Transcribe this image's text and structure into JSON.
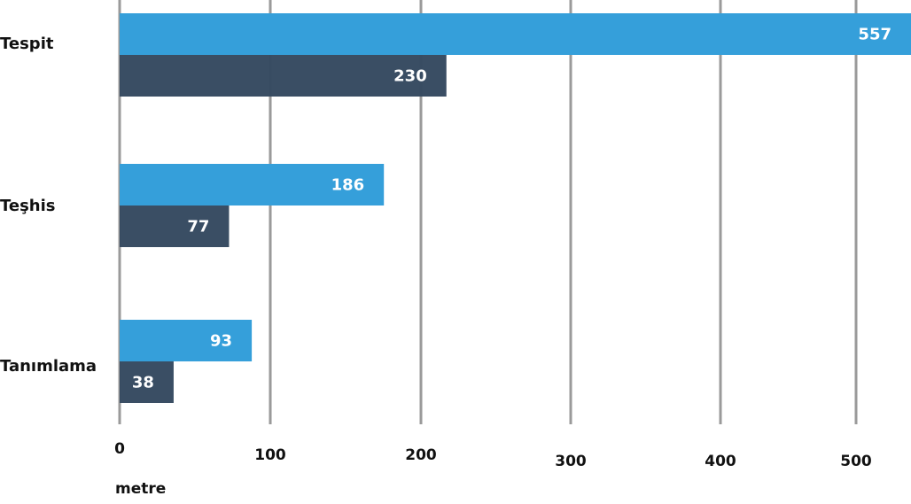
{
  "chart_data": {
    "type": "bar",
    "orientation": "horizontal",
    "categories": [
      "Tespit",
      "Teşhis",
      "Tanımlama"
    ],
    "series": [
      {
        "values": [
          557,
          186,
          93
        ],
        "color": "#359fda"
      },
      {
        "values": [
          230,
          77,
          38
        ],
        "color": "#364a61"
      }
    ],
    "x_ticks": [
      "0",
      "100",
      "200",
      "300",
      "400",
      "500"
    ],
    "xlabel": "metre",
    "grid": true
  }
}
